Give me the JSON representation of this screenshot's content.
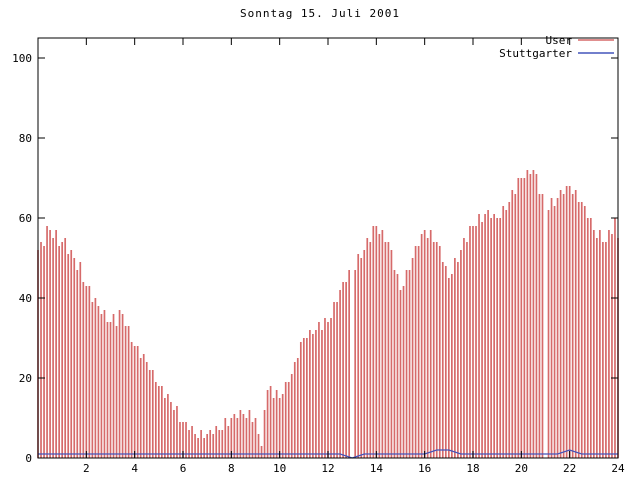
{
  "chart_data": {
    "type": "bar",
    "title": "Sonntag 15. Juli 2001",
    "xlabel": "",
    "ylabel": "",
    "xlim": [
      0,
      24
    ],
    "ylim": [
      0,
      105
    ],
    "xticks": [
      2,
      4,
      6,
      8,
      10,
      12,
      14,
      16,
      18,
      20,
      22,
      24
    ],
    "yticks": [
      0,
      20,
      40,
      60,
      80,
      100
    ],
    "grid": false,
    "legend_position": "top-right",
    "axis_color": "#000000",
    "background_color": "#ffffff",
    "series": [
      {
        "name": "User",
        "style": "impulses",
        "color": "#d66a6a",
        "x_start": 0,
        "x_step": 0.125,
        "values": [
          52,
          54,
          53,
          58,
          57,
          55,
          57,
          53,
          54,
          55,
          51,
          52,
          50,
          47,
          49,
          44,
          43,
          43,
          39,
          40,
          38,
          36,
          37,
          34,
          34,
          36,
          33,
          37,
          36,
          33,
          33,
          29,
          28,
          28,
          25,
          26,
          24,
          22,
          22,
          19,
          18,
          18,
          15,
          16,
          14,
          12,
          13,
          9,
          9,
          9,
          7,
          8,
          6,
          5,
          7,
          5,
          6,
          7,
          6,
          8,
          7,
          7,
          10,
          8,
          10,
          11,
          10,
          12,
          11,
          10,
          12,
          9,
          10,
          6,
          3,
          12,
          17,
          18,
          15,
          17,
          15,
          16,
          19,
          19,
          21,
          24,
          25,
          29,
          30,
          30,
          32,
          31,
          32,
          34,
          32,
          35,
          34,
          35,
          39,
          39,
          42,
          44,
          44,
          47,
          null,
          47,
          51,
          50,
          52,
          55,
          54,
          58,
          58,
          56,
          57,
          54,
          54,
          52,
          47,
          46,
          42,
          43,
          47,
          47,
          50,
          53,
          53,
          56,
          57,
          55,
          57,
          54,
          54,
          53,
          49,
          48,
          45,
          46,
          50,
          49,
          52,
          55,
          54,
          58,
          58,
          58,
          61,
          59,
          61,
          62,
          60,
          61,
          60,
          60,
          63,
          62,
          64,
          67,
          66,
          70,
          70,
          70,
          72,
          71,
          72,
          71,
          66,
          66,
          null,
          62,
          65,
          63,
          65,
          67,
          66,
          68,
          68,
          66,
          67,
          64,
          64,
          63,
          60,
          60,
          57,
          55,
          57,
          54,
          54,
          57,
          56,
          60,
          55
        ]
      },
      {
        "name": "Stuttgarter",
        "style": "line",
        "color": "#4455bb",
        "x_start": 0,
        "x_step": 0.5,
        "values": [
          1,
          1,
          1,
          1,
          1,
          1,
          1,
          1,
          1,
          1,
          1,
          1,
          1,
          1,
          1,
          1,
          1,
          1,
          1,
          1,
          1,
          1,
          1,
          1,
          1,
          1,
          0,
          1,
          1,
          1,
          1,
          1,
          1,
          2,
          2,
          1,
          1,
          1,
          1,
          1,
          1,
          1,
          1,
          1,
          2,
          1,
          1,
          1,
          1
        ]
      }
    ]
  }
}
